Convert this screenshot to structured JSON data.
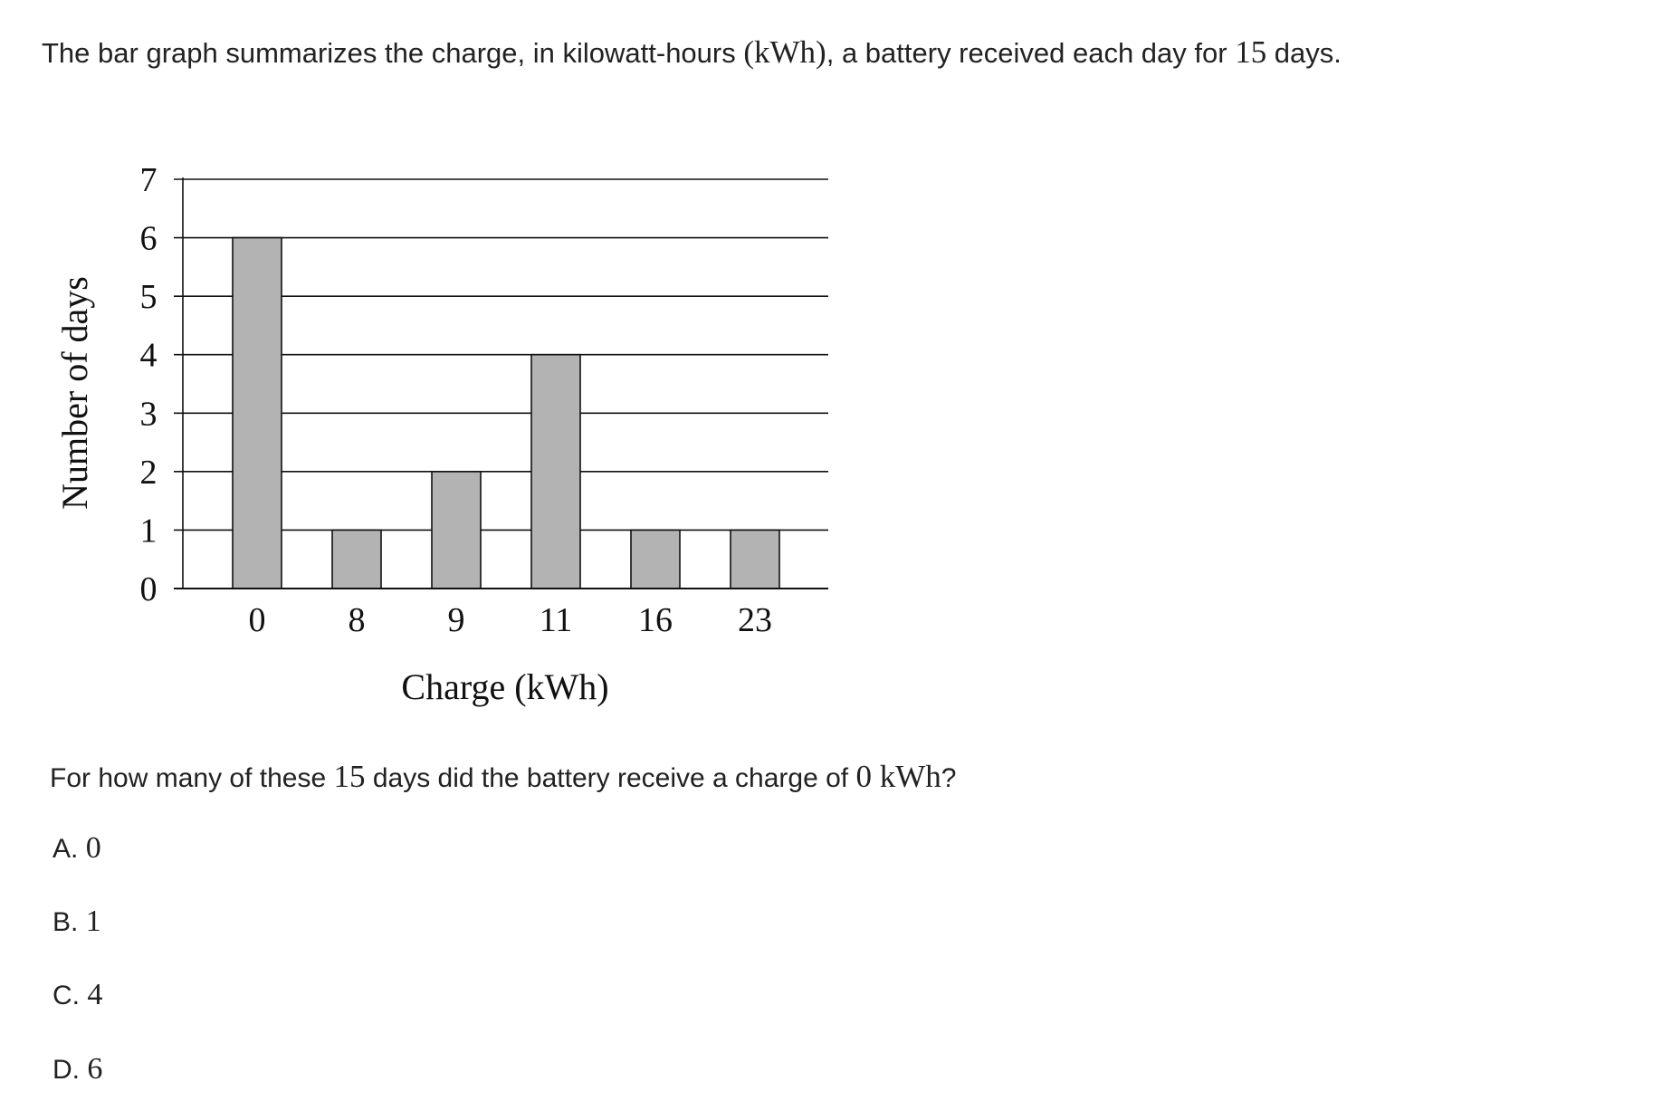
{
  "intro": {
    "text_before": "The bar graph summarizes the charge, in kilowatt-hours ",
    "unit_math": "(kWh)",
    "text_middle": ", a battery received each day for ",
    "days_math": "15",
    "text_after": " days."
  },
  "chart_data": {
    "type": "bar",
    "categories": [
      "0",
      "8",
      "9",
      "11",
      "16",
      "23"
    ],
    "values": [
      6,
      1,
      2,
      4,
      1,
      1
    ],
    "title": "",
    "xlabel": "Charge (kWh)",
    "ylabel": "Number of days",
    "ylim": [
      0,
      7
    ],
    "yticks": [
      "0",
      "1",
      "2",
      "3",
      "4",
      "5",
      "6",
      "7"
    ],
    "grid": true,
    "bar_color": "#b3b3b3"
  },
  "question": {
    "text_before": "For how many of these ",
    "days_math": "15",
    "text_middle": " days did the battery receive a charge of ",
    "value_math": "0 kWh",
    "text_after": "?"
  },
  "choices": [
    {
      "letter": "A.",
      "value": "0"
    },
    {
      "letter": "B.",
      "value": "1"
    },
    {
      "letter": "C.",
      "value": "4"
    },
    {
      "letter": "D.",
      "value": "6"
    }
  ]
}
